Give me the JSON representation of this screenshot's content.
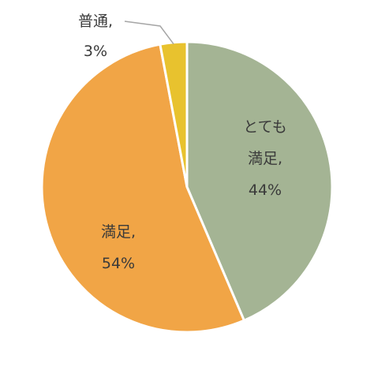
{
  "chart_data": {
    "type": "pie",
    "slices": [
      {
        "label": "とても満足",
        "value": 44,
        "value_label": "44%",
        "color": "#a4b494",
        "label_lines": [
          "とても",
          "満足,",
          "44%"
        ]
      },
      {
        "label": "満足",
        "value": 54,
        "value_label": "54%",
        "color": "#f1a546",
        "label_lines": [
          "満足,",
          "54%"
        ]
      },
      {
        "label": "普通",
        "value": 3,
        "value_label": "3%",
        "color": "#e8c22e",
        "label_lines": [
          "普通,",
          "3%"
        ]
      }
    ],
    "start_angle": "12 o'clock",
    "direction": "clockwise",
    "separator_color": "#ffffff",
    "leader_line_color": "#a6a6a6",
    "label_color": "#3a3a3a",
    "legend": "none"
  }
}
